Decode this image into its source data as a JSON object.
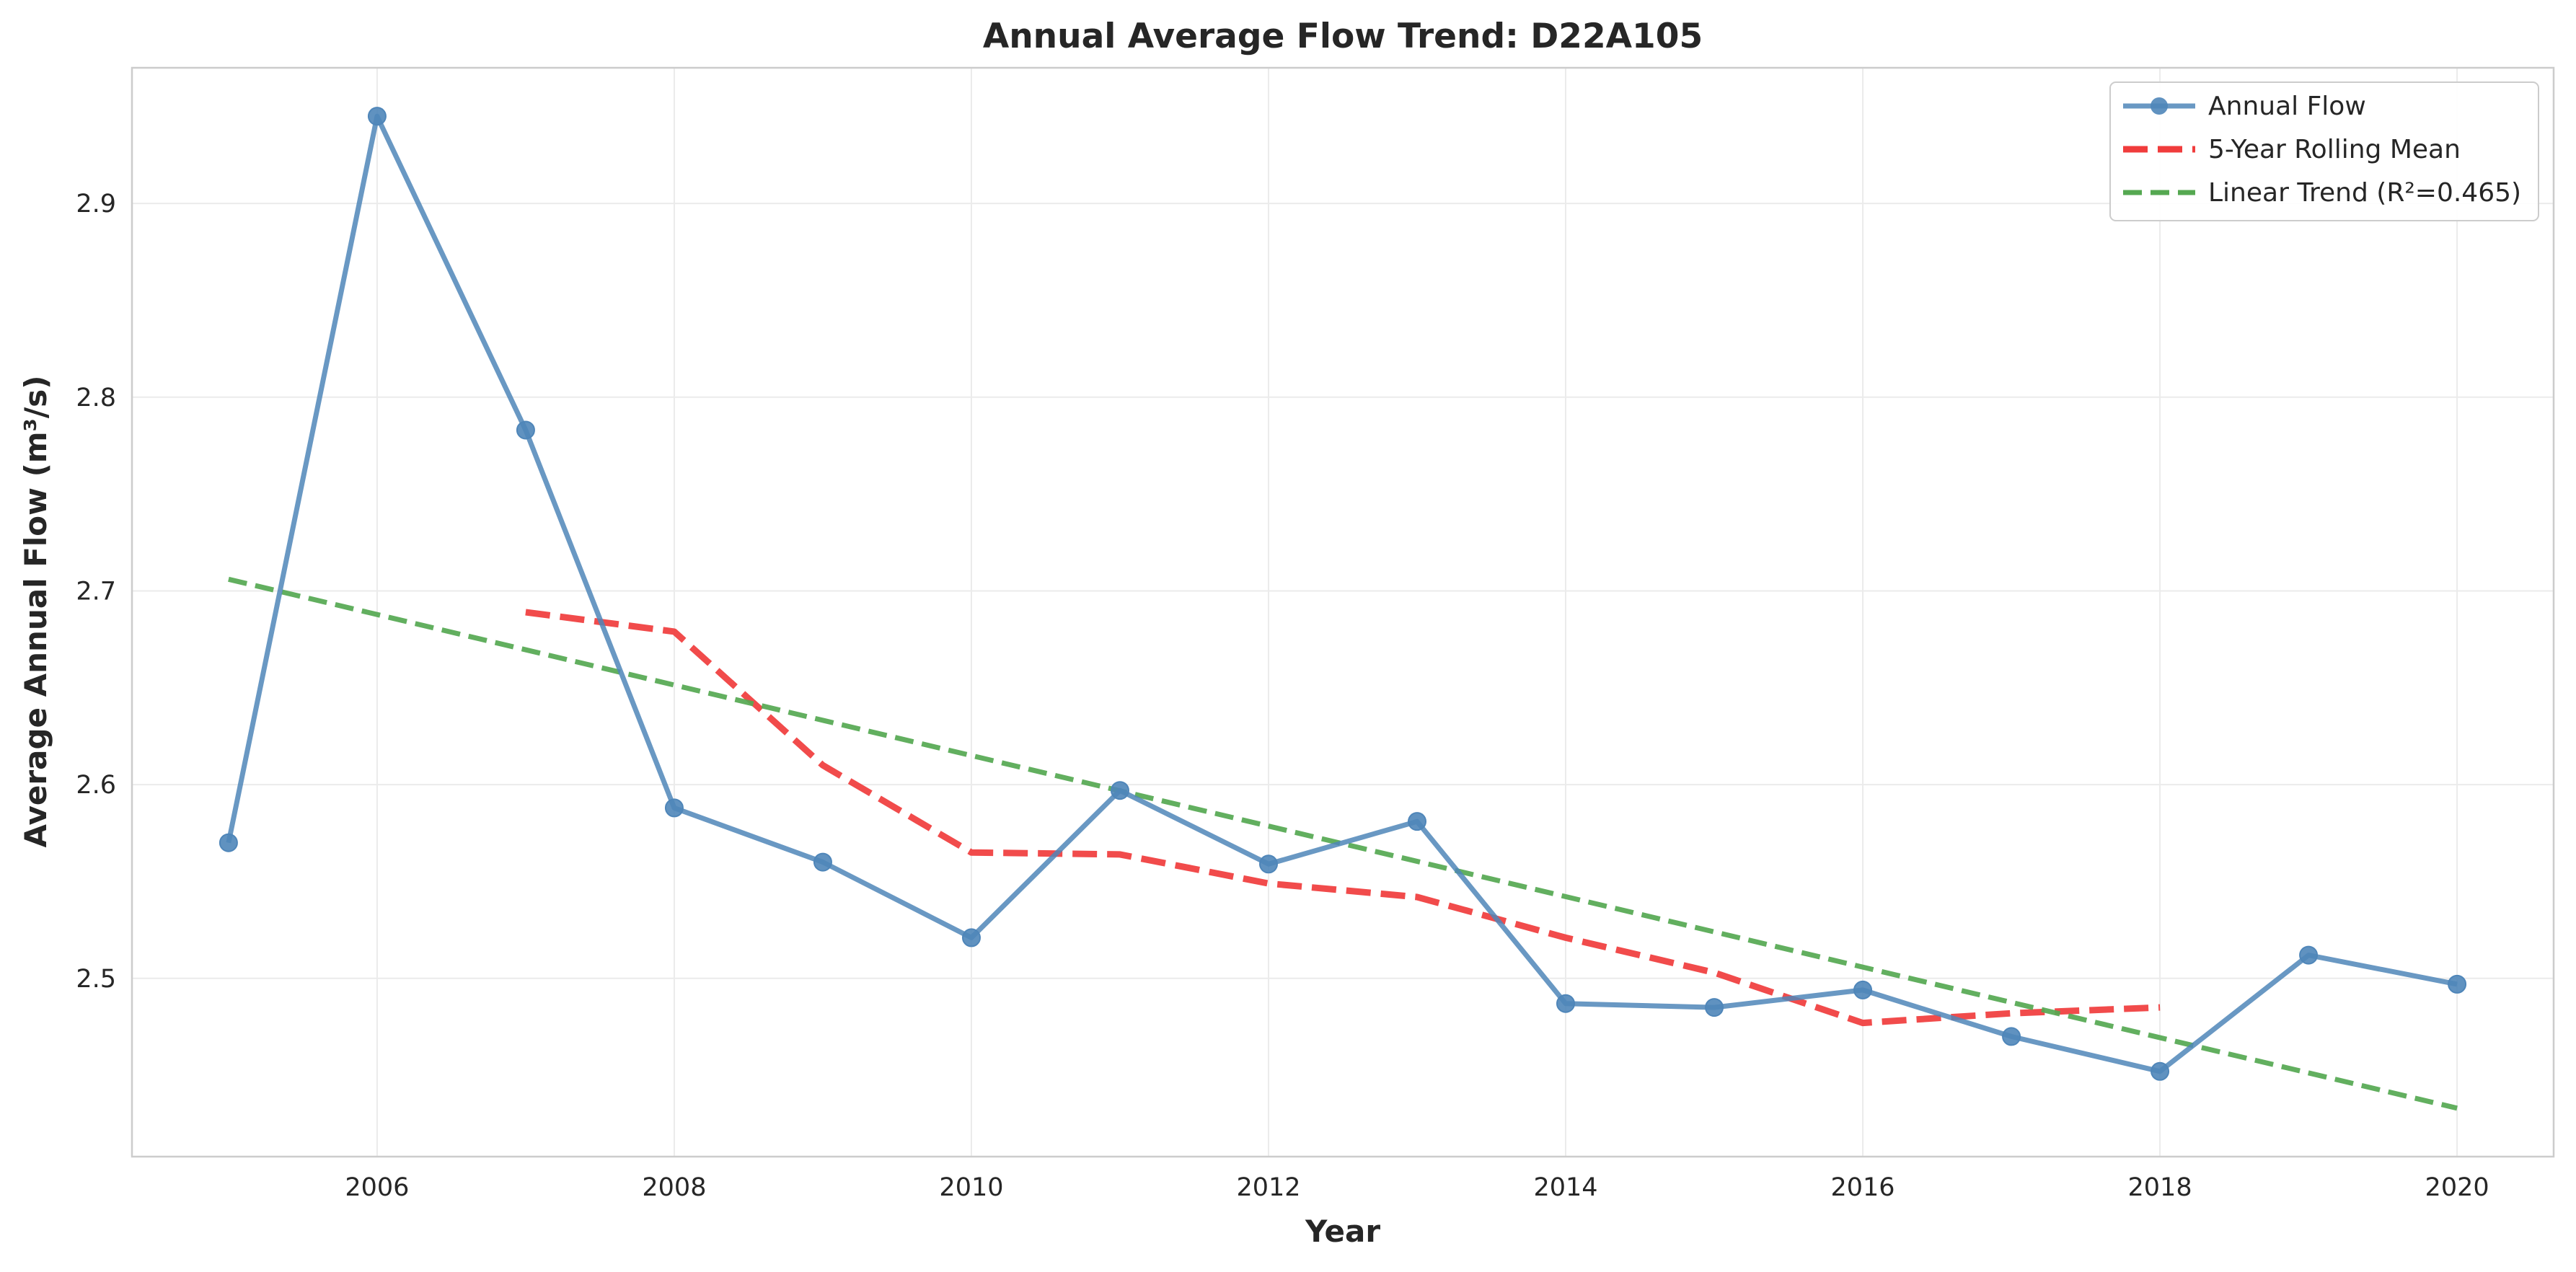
{
  "chart_data": {
    "type": "line",
    "title": "Annual Average Flow Trend: D22A105",
    "xlabel": "Year",
    "ylabel": "Average Annual Flow (m³/s)",
    "xlim": [
      2004.35,
      2020.65
    ],
    "ylim": [
      2.408,
      2.97
    ],
    "x_ticks": [
      2006,
      2008,
      2010,
      2012,
      2014,
      2016,
      2018,
      2020
    ],
    "y_ticks": [
      2.5,
      2.6,
      2.7,
      2.8,
      2.9
    ],
    "grid": true,
    "legend_position": "top-right",
    "series": [
      {
        "name": "Annual Flow",
        "style": "line-with-markers",
        "color": "#4f86b9",
        "x": [
          2005,
          2006,
          2007,
          2008,
          2009,
          2010,
          2011,
          2012,
          2013,
          2014,
          2015,
          2016,
          2017,
          2018,
          2019,
          2020
        ],
        "values": [
          2.57,
          2.945,
          2.783,
          2.588,
          2.56,
          2.521,
          2.597,
          2.559,
          2.581,
          2.487,
          2.485,
          2.494,
          2.47,
          2.452,
          2.512,
          2.497
        ]
      },
      {
        "name": "5-Year Rolling Mean",
        "style": "dashed",
        "color": "#f03c3c",
        "x": [
          2007,
          2008,
          2009,
          2010,
          2011,
          2012,
          2013,
          2014,
          2015,
          2016,
          2017,
          2018
        ],
        "values": [
          2.689,
          2.679,
          2.61,
          2.565,
          2.564,
          2.549,
          2.542,
          2.521,
          2.503,
          2.477,
          2.482,
          2.485
        ]
      },
      {
        "name": "Linear Trend (R²=0.465)",
        "style": "dashed",
        "color": "#55a851",
        "x": [
          2005,
          2020
        ],
        "values": [
          2.706,
          2.433
        ]
      }
    ]
  }
}
